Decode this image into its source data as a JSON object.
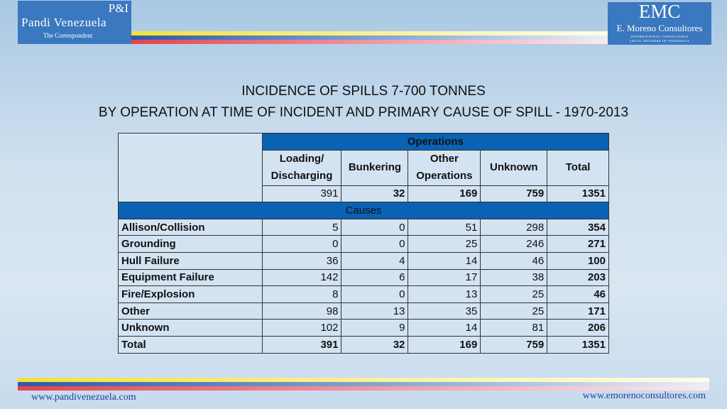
{
  "logo_left": {
    "top": "P&I",
    "name": "Pandi Venezuela",
    "sub": "The Correspondent"
  },
  "logo_right": {
    "top": "EMC",
    "name": "E. Moreno Consultores",
    "line1": "INTERNATIONAL CONSULTANTS",
    "line2": "LEGAL ADVISERS IN VENEZUELA"
  },
  "title": {
    "line1": "INCIDENCE OF SPILLS 7-700 TONNES",
    "line2": "BY OPERATION AT TIME OF INCIDENT AND PRIMARY CAUSE OF SPILL - 1970-2013"
  },
  "table": {
    "operations_header": "Operations",
    "causes_header": "Causes",
    "columns": [
      "Loading/ Discharging",
      "Bunkering",
      "Other Operations",
      "Unknown",
      "Total"
    ],
    "operations_totals": [
      "391",
      "32",
      "169",
      "759",
      "1351"
    ],
    "rows": [
      {
        "label": "Allison/Collision",
        "values": [
          "5",
          "0",
          "51",
          "298",
          "354"
        ]
      },
      {
        "label": "Grounding",
        "values": [
          "0",
          "0",
          "25",
          "246",
          "271"
        ]
      },
      {
        "label": "Hull Failure",
        "values": [
          "36",
          "4",
          "14",
          "46",
          "100"
        ]
      },
      {
        "label": "Equipment Failure",
        "values": [
          "142",
          "6",
          "17",
          "38",
          "203"
        ]
      },
      {
        "label": "Fire/Explosion",
        "values": [
          "8",
          "0",
          "13",
          "25",
          "46"
        ]
      },
      {
        "label": "Other",
        "values": [
          "98",
          "13",
          "35",
          "25",
          "171"
        ]
      },
      {
        "label": "Unknown",
        "values": [
          "102",
          "9",
          "14",
          "81",
          "206"
        ]
      },
      {
        "label": "Total",
        "values": [
          "391",
          "32",
          "169",
          "759",
          "1351"
        ]
      }
    ]
  },
  "footer": {
    "left": "www.pandivenezuela.com",
    "right": "www.emorenoconsultores.com"
  }
}
